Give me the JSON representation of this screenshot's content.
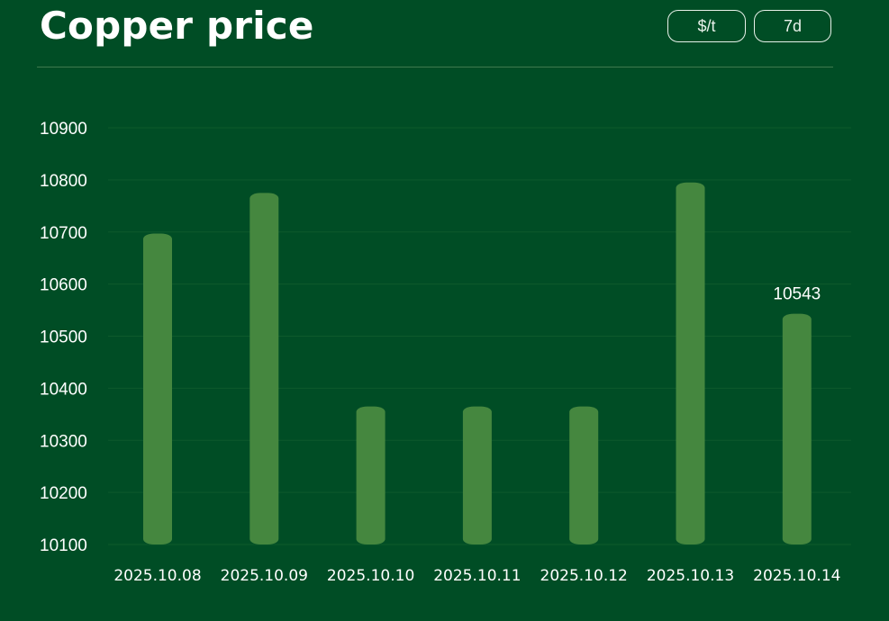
{
  "header": {
    "title": "Copper price",
    "unit_button": "$/t",
    "range_button": "7d"
  },
  "colors": {
    "background": "#004d25",
    "bar": "#45873f",
    "text": "#ffffff",
    "grid": "#0e5a2c"
  },
  "chart_data": {
    "type": "bar",
    "title": "Copper price",
    "xlabel": "",
    "ylabel": "",
    "categories": [
      "2025.10.08",
      "2025.10.09",
      "2025.10.10",
      "2025.10.11",
      "2025.10.12",
      "2025.10.13",
      "2025.10.14"
    ],
    "values": [
      10697,
      10775,
      10365,
      10365,
      10365,
      10795,
      10543
    ],
    "ylim": [
      10100,
      10900
    ],
    "yticks": [
      10100,
      10200,
      10300,
      10400,
      10500,
      10600,
      10700,
      10800,
      10900
    ],
    "grid": true,
    "data_labels": [
      {
        "category": "2025.10.14",
        "text": "10543"
      }
    ]
  }
}
